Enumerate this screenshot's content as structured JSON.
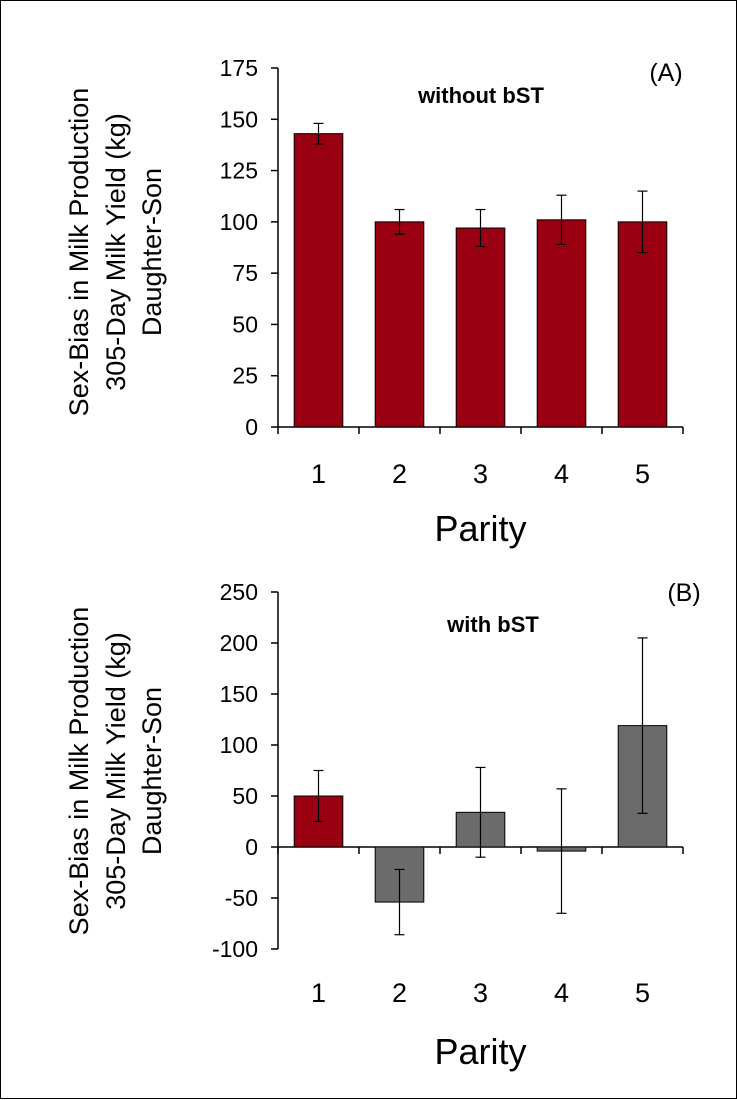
{
  "chart_data": [
    {
      "type": "bar",
      "panel_label": "(A)",
      "annotation": "without bST",
      "ylabel_lines": [
        "Sex-Bias in Milk Production",
        "305-Day Milk Yield (kg)",
        "Daughter-Son"
      ],
      "xlabel": "Parity",
      "categories": [
        "1",
        "2",
        "3",
        "4",
        "5"
      ],
      "values": [
        143,
        100,
        97,
        101,
        100
      ],
      "errors": [
        5,
        6,
        9,
        12,
        15
      ],
      "bar_colors": [
        "#990011",
        "#990011",
        "#990011",
        "#990011",
        "#990011"
      ],
      "ylim": [
        0,
        175
      ],
      "yticks": [
        0,
        25,
        50,
        75,
        100,
        125,
        150,
        175
      ],
      "ytick_labels": [
        "0",
        "25",
        "50",
        "75",
        "100",
        "125",
        "150",
        "175"
      ],
      "grid": false
    },
    {
      "type": "bar",
      "panel_label": "(B)",
      "annotation": "with bST",
      "ylabel_lines": [
        "Sex-Bias in Milk Production",
        "305-Day Milk Yield (kg)",
        "Daughter-Son"
      ],
      "xlabel": "Parity",
      "categories": [
        "1",
        "2",
        "3",
        "4",
        "5"
      ],
      "values": [
        50,
        -54,
        34,
        -4,
        119
      ],
      "errors": [
        25,
        32,
        44,
        61,
        86
      ],
      "bar_colors": [
        "#990011",
        "#6b6b6b",
        "#6b6b6b",
        "#6b6b6b",
        "#6b6b6b"
      ],
      "ylim": [
        -100,
        250
      ],
      "yticks": [
        -100,
        -50,
        0,
        50,
        100,
        150,
        200,
        250
      ],
      "ytick_labels": [
        "-100",
        "-50",
        "0",
        "50",
        "100",
        "150",
        "200",
        "250"
      ],
      "grid": false
    }
  ]
}
